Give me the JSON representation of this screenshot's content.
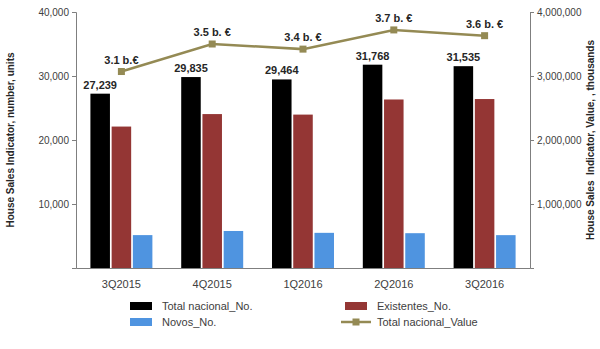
{
  "chart_data": {
    "type": "bar",
    "ylabel": "House Sales Indicator, number, units",
    "y2label": "House Sales  Indicator, Value, , thousands",
    "categories": [
      "3Q2015",
      "4Q2015",
      "1Q2016",
      "2Q2016",
      "3Q2016"
    ],
    "series": [
      {
        "name": "Total nacional_No.",
        "type": "bar",
        "color": "#000000",
        "values": [
          27239,
          29835,
          29464,
          31768,
          31535
        ],
        "data_labels": true,
        "value_labels": [
          "27,239",
          "29,835",
          "29,464",
          "31,768",
          "31,535"
        ]
      },
      {
        "name": "Existentes_No.",
        "type": "bar",
        "color": "#943634",
        "values": [
          22100,
          24050,
          23970,
          26330,
          26400
        ]
      },
      {
        "name": "Novos_No.",
        "type": "bar",
        "color": "#4f94e0",
        "values": [
          5139,
          5785,
          5494,
          5438,
          5135
        ]
      },
      {
        "name": "Total nacional_Value",
        "type": "line",
        "axis": "y2",
        "color": "#948a54",
        "marker": "square",
        "values": [
          3070000,
          3500000,
          3420000,
          3720000,
          3630000
        ],
        "data_labels": true,
        "value_labels": [
          "3.1 b.€",
          "3.5 b. €",
          "3.4 b. €",
          "3.7 b. €",
          "3.6 b. €"
        ]
      }
    ],
    "ylim": [
      0,
      40000
    ],
    "yticks": [
      {
        "value": 10000,
        "label": "10,000"
      },
      {
        "value": 20000,
        "label": "20,000"
      },
      {
        "value": 30000,
        "label": "30,000"
      },
      {
        "value": 40000,
        "label": "40,000"
      }
    ],
    "y2lim": [
      0,
      4000000
    ],
    "y2ticks": [
      {
        "value": 1000000,
        "label": "1,000,000"
      },
      {
        "value": 2000000,
        "label": "2,000,000"
      },
      {
        "value": 3000000,
        "label": "3,000,000"
      },
      {
        "value": 4000000,
        "label": "4,000,000"
      }
    ],
    "grid": false,
    "legend": "bottom"
  }
}
